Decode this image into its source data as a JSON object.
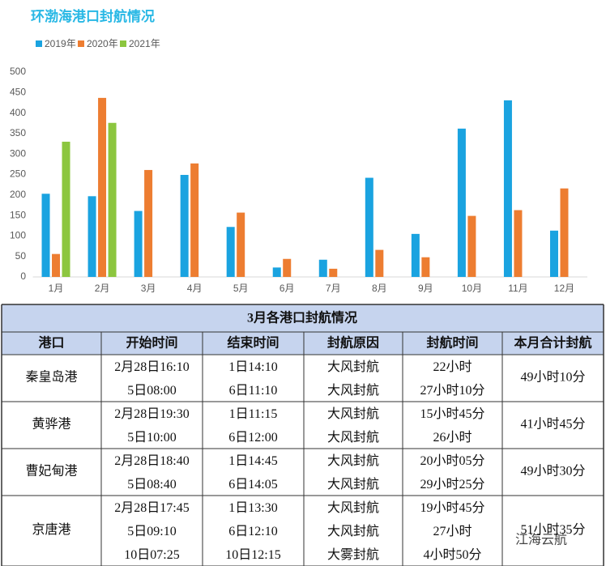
{
  "chart_data": {
    "type": "bar",
    "title": "环渤海港口封航情况",
    "categories": [
      "1月",
      "2月",
      "3月",
      "4月",
      "5月",
      "6月",
      "7月",
      "8月",
      "9月",
      "10月",
      "11月",
      "12月"
    ],
    "series": [
      {
        "name": "2019年",
        "color": "#1aa3e0",
        "values": [
          203,
          197,
          161,
          249,
          122,
          23,
          42,
          242,
          105,
          362,
          431,
          113
        ]
      },
      {
        "name": "2020年",
        "color": "#ed7d31",
        "values": [
          56,
          437,
          261,
          277,
          157,
          44,
          20,
          66,
          48,
          149,
          163,
          216
        ]
      },
      {
        "name": "2021年",
        "color": "#8cc63f",
        "values": [
          330,
          376,
          null,
          null,
          null,
          null,
          null,
          null,
          null,
          null,
          null,
          null
        ]
      }
    ],
    "ylim": [
      0,
      500
    ],
    "yticks": [
      0,
      50,
      100,
      150,
      200,
      250,
      300,
      350,
      400,
      450,
      500
    ],
    "grid": false,
    "legend": "top-left"
  },
  "table": {
    "title": "3月各港口封航情况",
    "header": [
      "港口",
      "开始时间",
      "结束时间",
      "封航原因",
      "封航时间",
      "本月合计封航"
    ],
    "rows": [
      {
        "port": "秦皇岛港",
        "total": "49小时10分",
        "entries": [
          [
            "2月28日16:10",
            "1日14:10",
            "大风封航",
            "22小时"
          ],
          [
            "5日08:00",
            "6日11:10",
            "大风封航",
            "27小时10分"
          ]
        ]
      },
      {
        "port": "黄骅港",
        "total": "41小时45分",
        "entries": [
          [
            "2月28日19:30",
            "1日11:15",
            "大风封航",
            "15小时45分"
          ],
          [
            "5日10:00",
            "6日12:00",
            "大风封航",
            "26小时"
          ]
        ]
      },
      {
        "port": "曹妃甸港",
        "total": "49小时30分",
        "entries": [
          [
            "2月28日18:40",
            "1日14:45",
            "大风封航",
            "20小时05分"
          ],
          [
            "5日08:40",
            "6日14:05",
            "大风封航",
            "29小时25分"
          ]
        ]
      },
      {
        "port": "京唐港",
        "total": "51小时35分",
        "entries": [
          [
            "2月28日17:45",
            "1日13:30",
            "大风封航",
            "19小时45分"
          ],
          [
            "5日09:10",
            "6日12:10",
            "大风封航",
            "27小时"
          ],
          [
            "10日07:25",
            "10日12:15",
            "大雾封航",
            "4小时50分"
          ]
        ]
      }
    ]
  },
  "watermark": "江海云航"
}
